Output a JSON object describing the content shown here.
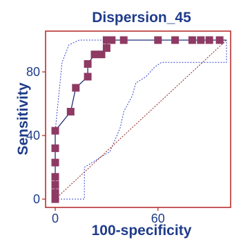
{
  "chart_data": {
    "type": "line",
    "title": "Dispersion_45",
    "xlabel": "100-specificity",
    "ylabel": "Sensitivity",
    "xlim": [
      0,
      100
    ],
    "ylim": [
      0,
      100
    ],
    "xticks": [
      0,
      60
    ],
    "yticks": [
      0,
      40,
      80
    ],
    "grid": false,
    "colors": {
      "frame": "#b22222",
      "roc": "#1f2e7a",
      "marker": "#8e3a63",
      "ci": "#3344cc",
      "diagonal": "#8b1a1a",
      "text": "#1f3c8a"
    },
    "series": [
      {
        "values_xy": [
          [
            0,
            0
          ],
          [
            0,
            4
          ],
          [
            0,
            9
          ],
          [
            0,
            14
          ],
          [
            0,
            23
          ],
          [
            0,
            32
          ],
          [
            0,
            43
          ],
          [
            9,
            55
          ],
          [
            12,
            70
          ],
          [
            19,
            77
          ],
          [
            19,
            85
          ],
          [
            23,
            91
          ],
          [
            27,
            91
          ],
          [
            30,
            95
          ],
          [
            30,
            100
          ],
          [
            40,
            100
          ],
          [
            60,
            100
          ],
          [
            80,
            100
          ],
          [
            100,
            100
          ]
        ],
        "markers_xy": [
          [
            0,
            0
          ],
          [
            0,
            4
          ],
          [
            0,
            9
          ],
          [
            0,
            14
          ],
          [
            0,
            23
          ],
          [
            0,
            32
          ],
          [
            0,
            43
          ],
          [
            9,
            55
          ],
          [
            12,
            70
          ],
          [
            19,
            77
          ],
          [
            19,
            85
          ],
          [
            23,
            91
          ],
          [
            27,
            91
          ],
          [
            30,
            95
          ],
          [
            30,
            100
          ],
          [
            33,
            100
          ],
          [
            40,
            100
          ],
          [
            60,
            100
          ],
          [
            70,
            100
          ],
          [
            80,
            100
          ],
          [
            85,
            100
          ],
          [
            90,
            100
          ],
          [
            96,
            100
          ]
        ]
      },
      {
        "style": "dotted",
        "values_xy": [
          [
            0,
            0
          ],
          [
            0,
            43
          ],
          [
            4,
            86
          ],
          [
            8,
            97
          ],
          [
            14,
            100
          ],
          [
            100,
            100
          ]
        ]
      },
      {
        "style": "dotted",
        "values_xy": [
          [
            0,
            0
          ],
          [
            17,
            0
          ],
          [
            17,
            20
          ],
          [
            32,
            30
          ],
          [
            38,
            45
          ],
          [
            40,
            55
          ],
          [
            45,
            65
          ],
          [
            47,
            73
          ],
          [
            53,
            77
          ],
          [
            58,
            83
          ],
          [
            62,
            86
          ],
          [
            100,
            86
          ],
          [
            100,
            100
          ]
        ]
      },
      {
        "style": "dotted",
        "values_xy": [
          [
            0,
            0
          ],
          [
            100,
            100
          ]
        ]
      }
    ]
  }
}
